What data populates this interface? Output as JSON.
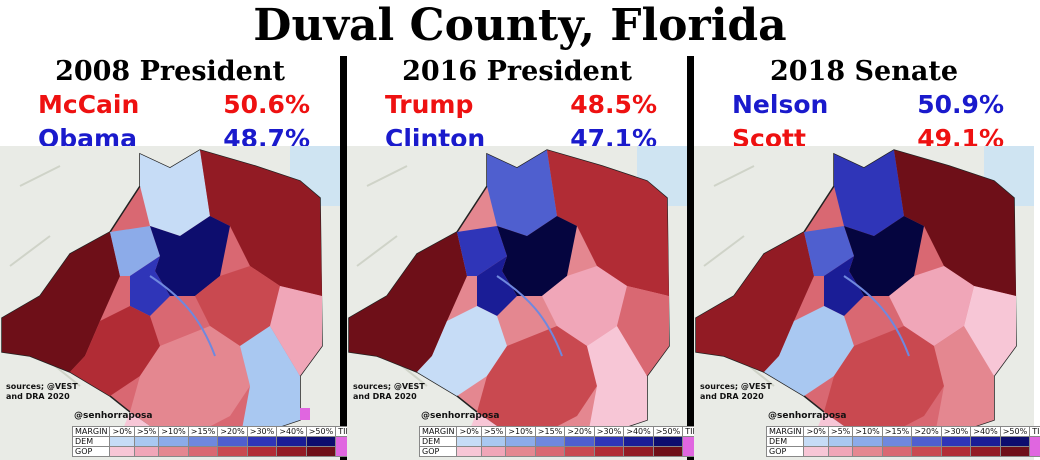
{
  "title": "Duval County, Florida",
  "colors": {
    "red": "#ee1111",
    "blue": "#1a1acc",
    "dem_scale": [
      "#c6dcf6",
      "#a9c8f1",
      "#8cabe9",
      "#6f88de",
      "#4f5fcf",
      "#2f35b8",
      "#1a1d96",
      "#0d0d6e",
      "#05053f"
    ],
    "gop_scale": [
      "#f7c6d6",
      "#f0a6b8",
      "#e48790",
      "#d96872",
      "#c94950",
      "#b12c35",
      "#921b24",
      "#6e0f18",
      "#4a0610"
    ],
    "tie": "#e066e0"
  },
  "panels": [
    {
      "title": "2008 President",
      "first": {
        "name": "McCain",
        "pct": "50.6%",
        "party": "GOP"
      },
      "second": {
        "name": "Obama",
        "pct": "48.7%",
        "party": "DEM"
      }
    },
    {
      "title": "2016 President",
      "first": {
        "name": "Trump",
        "pct": "48.5%",
        "party": "GOP"
      },
      "second": {
        "name": "Clinton",
        "pct": "47.1%",
        "party": "DEM"
      }
    },
    {
      "title": "2018 Senate",
      "first": {
        "name": "Nelson",
        "pct": "50.9%",
        "party": "DEM"
      },
      "second": {
        "name": "Scott",
        "pct": "49.1%",
        "party": "GOP"
      }
    }
  ],
  "sources": "sources; @VEST and DRA 2020",
  "handle": "@senhorraposa",
  "legend": {
    "margin_label": "MARGIN",
    "bins": [
      ">0%",
      ">5%",
      ">10%",
      ">15%",
      ">20%",
      ">30%",
      ">40%",
      ">50%",
      "TIE"
    ],
    "dem_label": "DEM",
    "gop_label": "GOP"
  }
}
